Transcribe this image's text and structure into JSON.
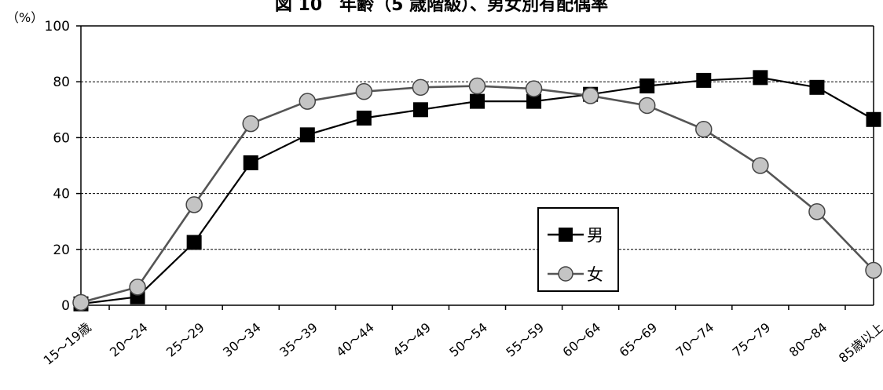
{
  "chart_data": {
    "type": "line",
    "title": "図 10　年齢（5 歳階級）、男女別有配偶率",
    "ylabel": "（%）",
    "xlabel": "",
    "ylim": [
      0,
      100
    ],
    "yticks": [
      0,
      20,
      40,
      60,
      80,
      100
    ],
    "grid": true,
    "legend_position": "center-right",
    "categories": [
      "15～19歳",
      "20～24",
      "25～29",
      "30～34",
      "35～39",
      "40～44",
      "45～49",
      "50～54",
      "55～59",
      "60～64",
      "65～69",
      "70～74",
      "75～79",
      "80～84",
      "85歳以上"
    ],
    "series": [
      {
        "name": "男",
        "marker": "square",
        "color": "#000000",
        "values": [
          0.5,
          3,
          22.5,
          51,
          61,
          67,
          70,
          73,
          73,
          75.5,
          78.5,
          80.5,
          81.5,
          78,
          66.5
        ]
      },
      {
        "name": "女",
        "marker": "circle",
        "color": "#555555",
        "values": [
          1,
          6.5,
          36,
          65,
          73,
          76.5,
          78,
          78.5,
          77.5,
          75,
          71.5,
          63,
          50,
          33.5,
          12.5
        ]
      }
    ]
  }
}
